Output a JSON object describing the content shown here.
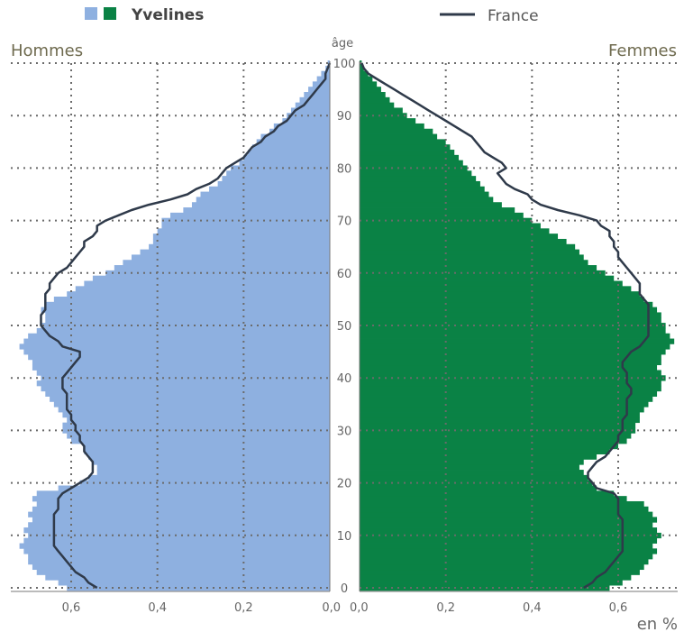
{
  "legend": {
    "region_label": "Yvelines",
    "region_colors": [
      "#8eb0e0",
      "#0a8245"
    ],
    "reference_label": "France",
    "reference_color": "#2f3a4a"
  },
  "chart_data": {
    "type": "bar",
    "orientation": "horizontal",
    "subtype": "population-pyramid",
    "left_title": "Hommes",
    "right_title": "Femmes",
    "age_axis_label": "âge",
    "value_unit_label": "en %",
    "age_range": [
      0,
      100
    ],
    "age_ticks": [
      0,
      10,
      20,
      30,
      40,
      50,
      60,
      70,
      80,
      90,
      100
    ],
    "age_tick_labels": [
      "0",
      "10",
      "20",
      "30",
      "40",
      "50",
      "60",
      "70",
      "80",
      "90",
      "100"
    ],
    "value_range": [
      0,
      0.7
    ],
    "value_ticks_left": [
      "0,6",
      "0,4",
      "0,2",
      "0,0"
    ],
    "value_ticks_right": [
      "0,0",
      "0,2",
      "0,4",
      "0,6"
    ],
    "value_tick_values": [
      0.6,
      0.4,
      0.2,
      0.0
    ],
    "grid": "dotted",
    "ages": [
      0,
      1,
      2,
      3,
      4,
      5,
      6,
      7,
      8,
      9,
      10,
      11,
      12,
      13,
      14,
      15,
      16,
      17,
      18,
      19,
      20,
      21,
      22,
      23,
      24,
      25,
      26,
      27,
      28,
      29,
      30,
      31,
      32,
      33,
      34,
      35,
      36,
      37,
      38,
      39,
      40,
      41,
      42,
      43,
      44,
      45,
      46,
      47,
      48,
      49,
      50,
      51,
      52,
      53,
      54,
      55,
      56,
      57,
      58,
      59,
      60,
      61,
      62,
      63,
      64,
      65,
      66,
      67,
      68,
      69,
      70,
      71,
      72,
      73,
      74,
      75,
      76,
      77,
      78,
      79,
      80,
      81,
      82,
      83,
      84,
      85,
      86,
      87,
      88,
      89,
      90,
      91,
      92,
      93,
      94,
      95,
      96,
      97,
      98,
      99,
      100
    ],
    "series": [
      {
        "name": "Yvelines",
        "side": "left",
        "color": "#8eb0e0",
        "values": [
          0.61,
          0.63,
          0.66,
          0.68,
          0.69,
          0.7,
          0.7,
          0.71,
          0.72,
          0.71,
          0.7,
          0.71,
          0.7,
          0.69,
          0.7,
          0.69,
          0.68,
          0.69,
          0.68,
          0.63,
          0.58,
          0.56,
          0.54,
          0.54,
          0.55,
          0.56,
          0.57,
          0.57,
          0.6,
          0.61,
          0.62,
          0.62,
          0.61,
          0.62,
          0.63,
          0.64,
          0.65,
          0.66,
          0.67,
          0.68,
          0.67,
          0.68,
          0.69,
          0.69,
          0.7,
          0.71,
          0.72,
          0.71,
          0.7,
          0.68,
          0.67,
          0.66,
          0.66,
          0.67,
          0.66,
          0.64,
          0.61,
          0.59,
          0.57,
          0.55,
          0.52,
          0.5,
          0.48,
          0.46,
          0.44,
          0.42,
          0.41,
          0.41,
          0.4,
          0.39,
          0.39,
          0.37,
          0.34,
          0.32,
          0.31,
          0.3,
          0.28,
          0.26,
          0.25,
          0.24,
          0.23,
          0.21,
          0.2,
          0.19,
          0.18,
          0.17,
          0.16,
          0.14,
          0.13,
          0.11,
          0.1,
          0.09,
          0.08,
          0.07,
          0.06,
          0.05,
          0.04,
          0.03,
          0.02,
          0.01,
          0.005
        ]
      },
      {
        "name": "Yvelines",
        "side": "right",
        "color": "#0a8245",
        "values": [
          0.58,
          0.61,
          0.63,
          0.65,
          0.66,
          0.67,
          0.68,
          0.69,
          0.68,
          0.69,
          0.7,
          0.69,
          0.68,
          0.69,
          0.68,
          0.67,
          0.66,
          0.62,
          0.59,
          0.55,
          0.54,
          0.53,
          0.52,
          0.51,
          0.52,
          0.55,
          0.58,
          0.6,
          0.62,
          0.63,
          0.64,
          0.64,
          0.65,
          0.65,
          0.66,
          0.67,
          0.68,
          0.69,
          0.7,
          0.7,
          0.71,
          0.7,
          0.69,
          0.7,
          0.7,
          0.71,
          0.72,
          0.73,
          0.72,
          0.71,
          0.71,
          0.7,
          0.7,
          0.69,
          0.68,
          0.66,
          0.65,
          0.63,
          0.61,
          0.59,
          0.57,
          0.55,
          0.53,
          0.52,
          0.51,
          0.5,
          0.48,
          0.46,
          0.44,
          0.42,
          0.4,
          0.38,
          0.36,
          0.33,
          0.31,
          0.3,
          0.29,
          0.28,
          0.27,
          0.26,
          0.25,
          0.24,
          0.23,
          0.22,
          0.21,
          0.2,
          0.18,
          0.17,
          0.15,
          0.13,
          0.11,
          0.1,
          0.08,
          0.07,
          0.06,
          0.05,
          0.04,
          0.03,
          0.02,
          0.01,
          0.005
        ]
      },
      {
        "name": "France",
        "side": "left",
        "color": "#2f3a4a",
        "values": [
          0.54,
          0.56,
          0.57,
          0.59,
          0.6,
          0.61,
          0.62,
          0.63,
          0.64,
          0.64,
          0.64,
          0.64,
          0.64,
          0.64,
          0.64,
          0.63,
          0.63,
          0.63,
          0.62,
          0.6,
          0.58,
          0.56,
          0.55,
          0.55,
          0.55,
          0.56,
          0.57,
          0.57,
          0.58,
          0.58,
          0.59,
          0.59,
          0.6,
          0.6,
          0.61,
          0.61,
          0.61,
          0.61,
          0.62,
          0.62,
          0.62,
          0.61,
          0.6,
          0.59,
          0.58,
          0.58,
          0.62,
          0.63,
          0.65,
          0.66,
          0.67,
          0.67,
          0.67,
          0.66,
          0.66,
          0.66,
          0.66,
          0.65,
          0.65,
          0.64,
          0.63,
          0.61,
          0.6,
          0.59,
          0.58,
          0.57,
          0.57,
          0.55,
          0.54,
          0.54,
          0.52,
          0.49,
          0.46,
          0.42,
          0.37,
          0.33,
          0.31,
          0.28,
          0.26,
          0.25,
          0.24,
          0.22,
          0.2,
          0.19,
          0.18,
          0.16,
          0.15,
          0.13,
          0.12,
          0.1,
          0.09,
          0.08,
          0.06,
          0.05,
          0.04,
          0.03,
          0.02,
          0.01,
          0.01,
          0.005,
          0.0
        ]
      },
      {
        "name": "France",
        "side": "right",
        "color": "#2f3a4a",
        "values": [
          0.52,
          0.54,
          0.55,
          0.57,
          0.58,
          0.59,
          0.6,
          0.61,
          0.61,
          0.61,
          0.61,
          0.61,
          0.61,
          0.61,
          0.6,
          0.6,
          0.6,
          0.6,
          0.59,
          0.55,
          0.54,
          0.53,
          0.53,
          0.54,
          0.55,
          0.57,
          0.58,
          0.59,
          0.6,
          0.6,
          0.61,
          0.61,
          0.61,
          0.62,
          0.62,
          0.62,
          0.62,
          0.63,
          0.63,
          0.62,
          0.62,
          0.62,
          0.61,
          0.61,
          0.62,
          0.63,
          0.65,
          0.66,
          0.67,
          0.67,
          0.67,
          0.67,
          0.67,
          0.67,
          0.67,
          0.66,
          0.65,
          0.65,
          0.65,
          0.64,
          0.63,
          0.62,
          0.61,
          0.6,
          0.6,
          0.59,
          0.59,
          0.58,
          0.58,
          0.56,
          0.55,
          0.51,
          0.46,
          0.42,
          0.4,
          0.39,
          0.36,
          0.34,
          0.33,
          0.32,
          0.34,
          0.33,
          0.31,
          0.29,
          0.28,
          0.27,
          0.26,
          0.24,
          0.22,
          0.2,
          0.18,
          0.16,
          0.14,
          0.12,
          0.1,
          0.08,
          0.06,
          0.04,
          0.02,
          0.01,
          0.005
        ]
      }
    ]
  }
}
